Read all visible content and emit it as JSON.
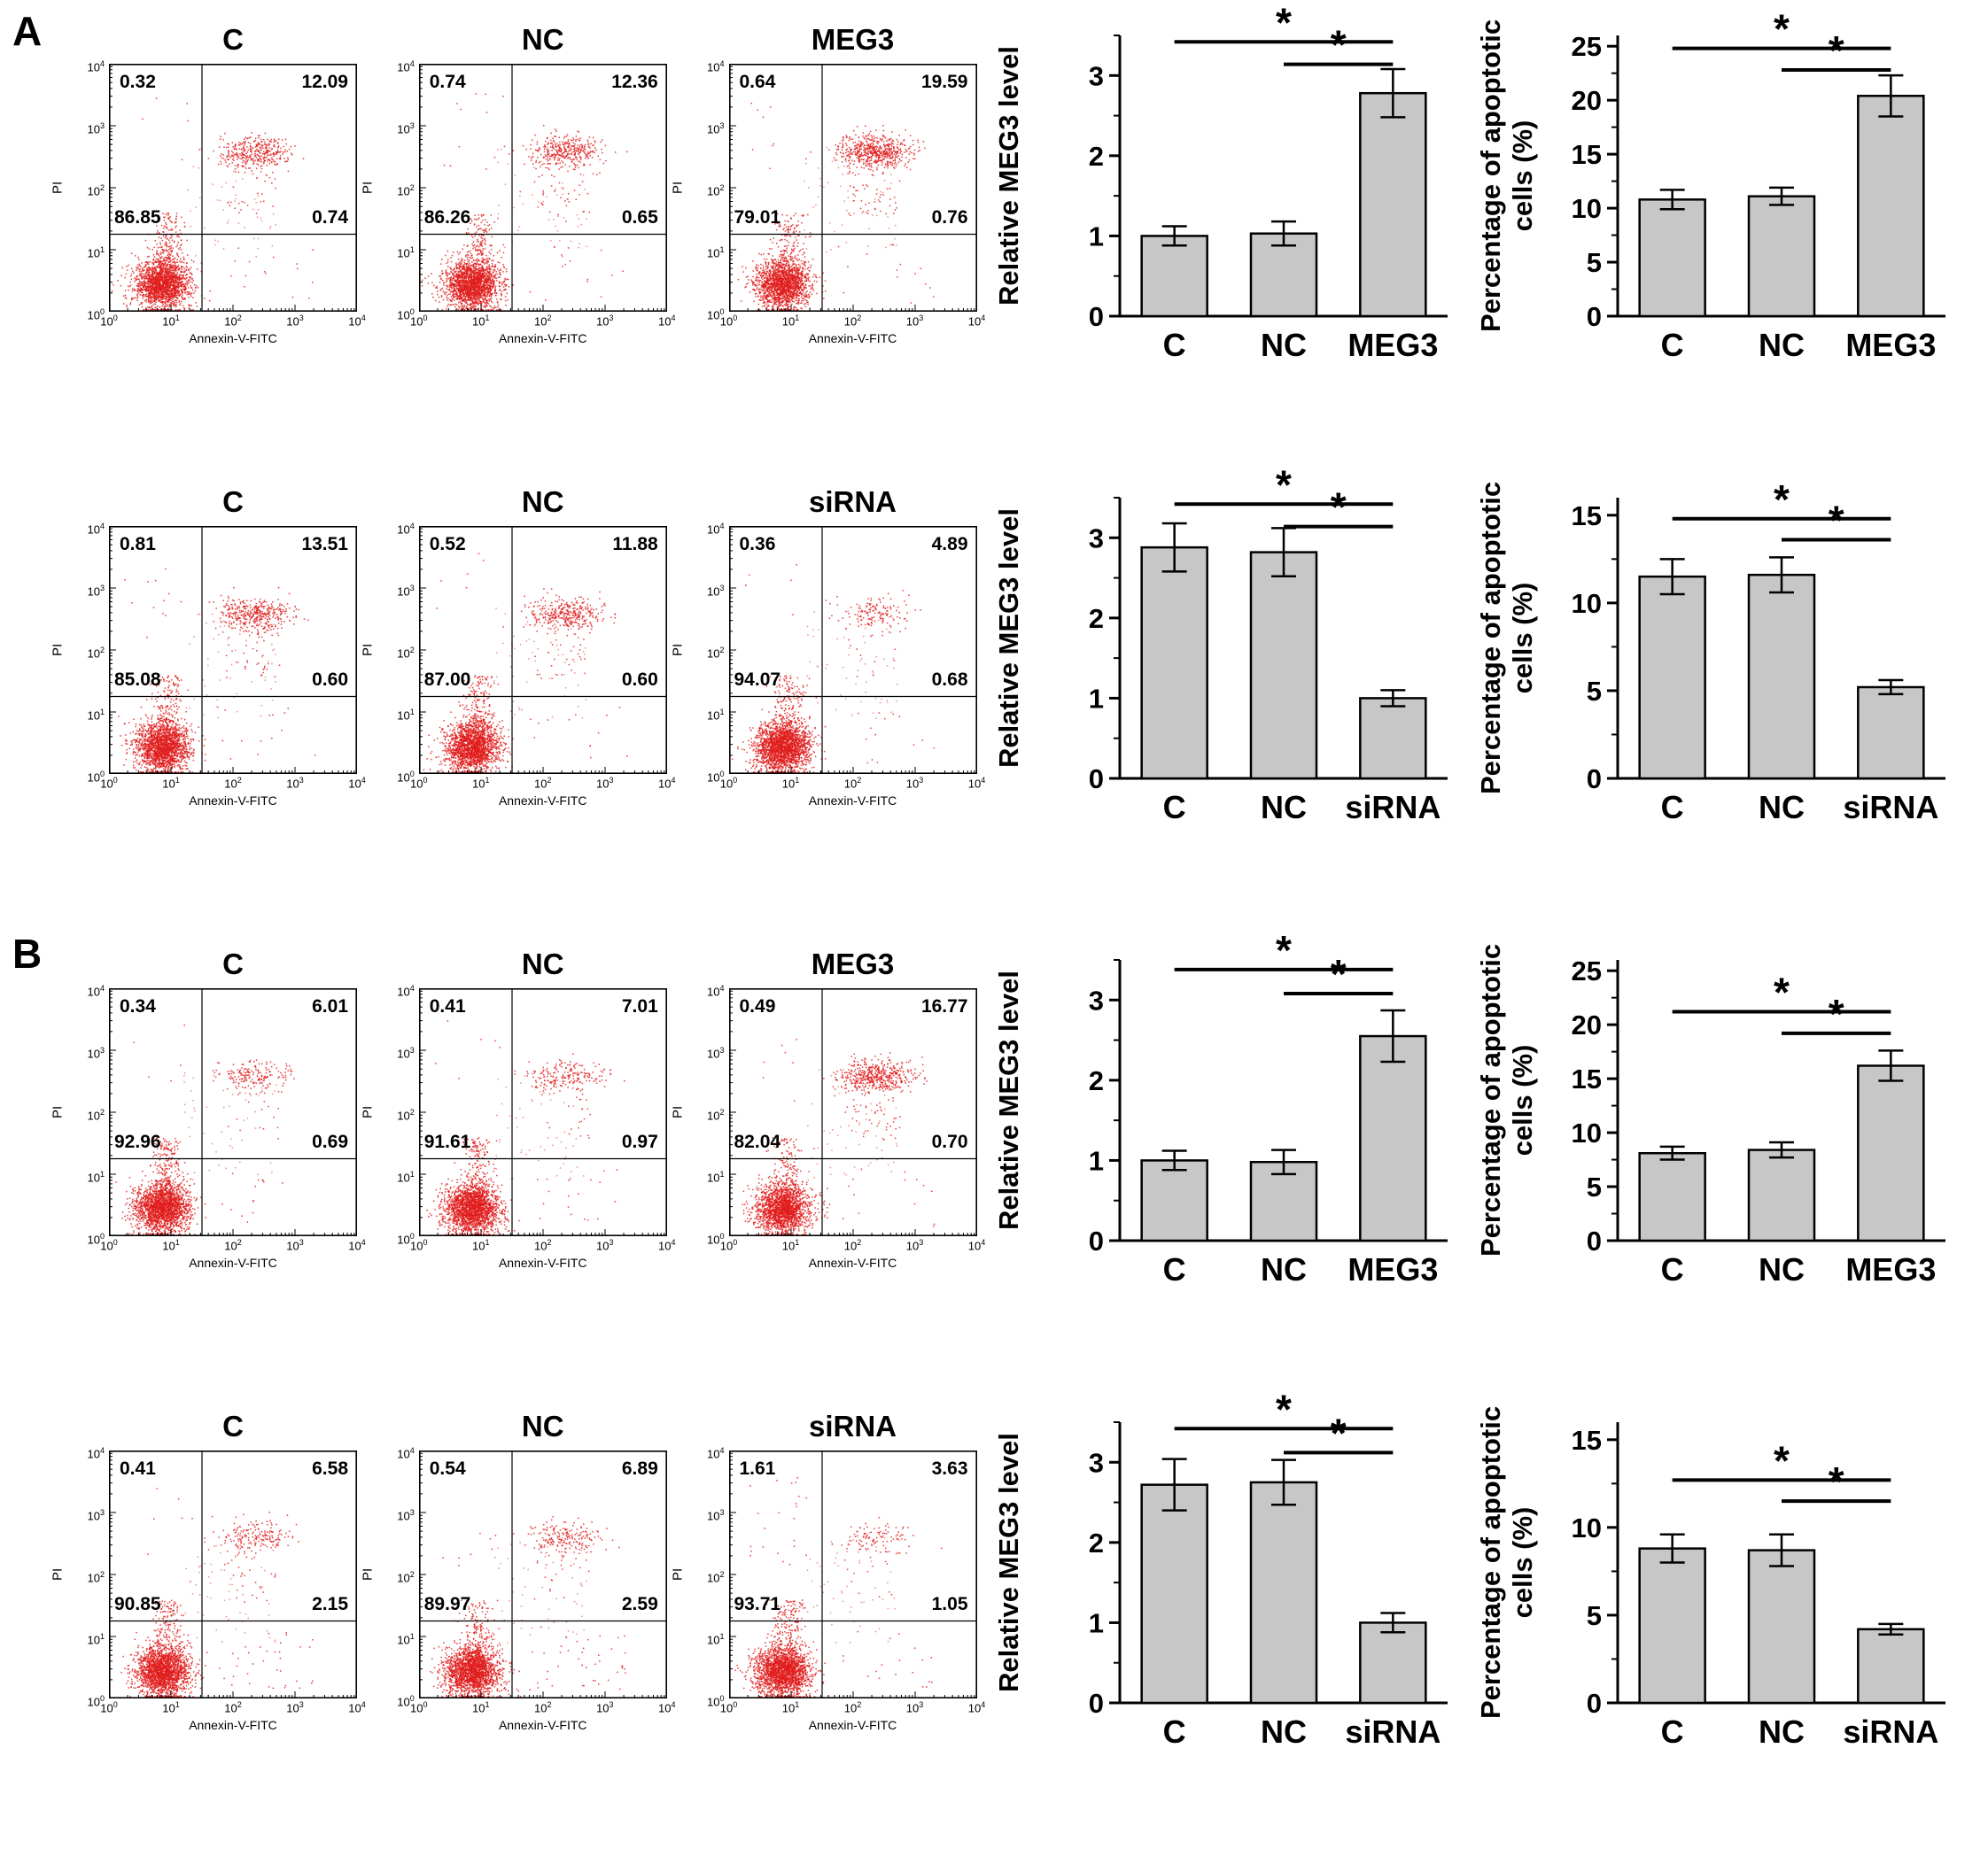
{
  "panels": {
    "a_label": "A",
    "b_label": "B"
  },
  "flow_axis": {
    "xlabel": "Annexin-V-FITC",
    "ylabel": "PI",
    "tick_exponents": [
      0,
      1,
      2,
      3,
      4
    ],
    "dot_color": "#e11d1d",
    "x_quadrant_divider_log": 1.5,
    "y_quadrant_divider_log": 1.25
  },
  "rows": [
    {
      "panel": "A",
      "flow_plots": [
        {
          "title": "C",
          "ul": "0.32",
          "ur": "12.09",
          "ll": "86.85",
          "lr": "0.74"
        },
        {
          "title": "NC",
          "ul": "0.74",
          "ur": "12.36",
          "ll": "86.26",
          "lr": "0.65"
        },
        {
          "title": "MEG3",
          "ul": "0.64",
          "ur": "19.59",
          "ll": "79.01",
          "lr": "0.76"
        }
      ],
      "chart_indices": [
        0,
        1
      ]
    },
    {
      "panel": "A",
      "flow_plots": [
        {
          "title": "C",
          "ul": "0.81",
          "ur": "13.51",
          "ll": "85.08",
          "lr": "0.60"
        },
        {
          "title": "NC",
          "ul": "0.52",
          "ur": "11.88",
          "ll": "87.00",
          "lr": "0.60"
        },
        {
          "title": "siRNA",
          "ul": "0.36",
          "ur": "4.89",
          "ll": "94.07",
          "lr": "0.68"
        }
      ],
      "chart_indices": [
        2,
        3
      ]
    },
    {
      "panel": "B",
      "flow_plots": [
        {
          "title": "C",
          "ul": "0.34",
          "ur": "6.01",
          "ll": "92.96",
          "lr": "0.69"
        },
        {
          "title": "NC",
          "ul": "0.41",
          "ur": "7.01",
          "ll": "91.61",
          "lr": "0.97"
        },
        {
          "title": "MEG3",
          "ul": "0.49",
          "ur": "16.77",
          "ll": "82.04",
          "lr": "0.70"
        }
      ],
      "chart_indices": [
        4,
        5
      ]
    },
    {
      "panel": "B",
      "flow_plots": [
        {
          "title": "C",
          "ul": "0.41",
          "ur": "6.58",
          "ll": "90.85",
          "lr": "2.15"
        },
        {
          "title": "NC",
          "ul": "0.54",
          "ur": "6.89",
          "ll": "89.97",
          "lr": "2.59"
        },
        {
          "title": "siRNA",
          "ul": "1.61",
          "ur": "3.63",
          "ll": "93.71",
          "lr": "1.05"
        }
      ],
      "chart_indices": [
        6,
        7
      ]
    }
  ],
  "chart_data": [
    {
      "id": "A-row1-meg3-level",
      "type": "bar",
      "categories": [
        "C",
        "NC",
        "MEG3"
      ],
      "values": [
        1.0,
        1.03,
        2.78
      ],
      "errors": [
        0.12,
        0.15,
        0.3
      ],
      "ylabel": "Relative MEG3 level",
      "ylabel_lines": [
        "Relative MEG3 level"
      ],
      "yticks": [
        0,
        1,
        2,
        3
      ],
      "ylim": [
        0,
        3.5
      ],
      "bar_color": "#c7c7c7",
      "significance": [
        {
          "from": 0,
          "to": 2,
          "y": 3.42,
          "label": "*"
        },
        {
          "from": 1,
          "to": 2,
          "y": 3.14,
          "label": "*"
        }
      ]
    },
    {
      "id": "A-row1-apoptotic",
      "type": "bar",
      "categories": [
        "C",
        "NC",
        "MEG3"
      ],
      "values": [
        10.8,
        11.1,
        20.4
      ],
      "errors": [
        0.9,
        0.8,
        1.9
      ],
      "ylabel": "Percentage of apoptotic cells (%)",
      "ylabel_lines": [
        "Percentage of apoptotic",
        "cells (%)"
      ],
      "yticks": [
        0,
        5,
        10,
        15,
        20,
        25
      ],
      "ylim": [
        0,
        26
      ],
      "bar_color": "#c7c7c7",
      "significance": [
        {
          "from": 0,
          "to": 2,
          "y": 24.8,
          "label": "*"
        },
        {
          "from": 1,
          "to": 2,
          "y": 22.8,
          "label": "*"
        }
      ]
    },
    {
      "id": "A-row2-meg3-level",
      "type": "bar",
      "categories": [
        "C",
        "NC",
        "siRNA"
      ],
      "values": [
        2.88,
        2.82,
        1.0
      ],
      "errors": [
        0.3,
        0.3,
        0.1
      ],
      "ylabel": "Relative MEG3 level",
      "ylabel_lines": [
        "Relative MEG3 level"
      ],
      "yticks": [
        0,
        1,
        2,
        3
      ],
      "ylim": [
        0,
        3.5
      ],
      "bar_color": "#c7c7c7",
      "significance": [
        {
          "from": 0,
          "to": 2,
          "y": 3.42,
          "label": "*"
        },
        {
          "from": 1,
          "to": 2,
          "y": 3.14,
          "label": "*"
        }
      ]
    },
    {
      "id": "A-row2-apoptotic",
      "type": "bar",
      "categories": [
        "C",
        "NC",
        "siRNA"
      ],
      "values": [
        11.5,
        11.6,
        5.2
      ],
      "errors": [
        1.0,
        1.0,
        0.4
      ],
      "ylabel": "Percentage of apoptotic cells (%)",
      "ylabel_lines": [
        "Percentage of apoptotic",
        "cells (%)"
      ],
      "yticks": [
        0,
        5,
        10,
        15
      ],
      "ylim": [
        0,
        16
      ],
      "bar_color": "#c7c7c7",
      "significance": [
        {
          "from": 0,
          "to": 2,
          "y": 14.8,
          "label": "*"
        },
        {
          "from": 1,
          "to": 2,
          "y": 13.6,
          "label": "*"
        }
      ]
    },
    {
      "id": "B-row1-meg3-level",
      "type": "bar",
      "categories": [
        "C",
        "NC",
        "MEG3"
      ],
      "values": [
        1.0,
        0.98,
        2.55
      ],
      "errors": [
        0.12,
        0.15,
        0.32
      ],
      "ylabel": "Relative MEG3 level",
      "ylabel_lines": [
        "Relative MEG3 level"
      ],
      "yticks": [
        0,
        1,
        2,
        3
      ],
      "ylim": [
        0,
        3.5
      ],
      "bar_color": "#c7c7c7",
      "significance": [
        {
          "from": 0,
          "to": 2,
          "y": 3.38,
          "label": "*"
        },
        {
          "from": 1,
          "to": 2,
          "y": 3.08,
          "label": "*"
        }
      ]
    },
    {
      "id": "B-row1-apoptotic",
      "type": "bar",
      "categories": [
        "C",
        "NC",
        "MEG3"
      ],
      "values": [
        8.1,
        8.4,
        16.2
      ],
      "errors": [
        0.6,
        0.7,
        1.4
      ],
      "ylabel": "Percentage of apoptotic cells (%)",
      "ylabel_lines": [
        "Percentage of apoptotic",
        "cells (%)"
      ],
      "yticks": [
        0,
        5,
        10,
        15,
        20,
        25
      ],
      "ylim": [
        0,
        26
      ],
      "bar_color": "#c7c7c7",
      "significance": [
        {
          "from": 0,
          "to": 2,
          "y": 21.2,
          "label": "*"
        },
        {
          "from": 1,
          "to": 2,
          "y": 19.2,
          "label": "*"
        }
      ]
    },
    {
      "id": "B-row2-meg3-level",
      "type": "bar",
      "categories": [
        "C",
        "NC",
        "siRNA"
      ],
      "values": [
        2.72,
        2.75,
        1.0
      ],
      "errors": [
        0.32,
        0.28,
        0.12
      ],
      "ylabel": "Relative MEG3 level",
      "ylabel_lines": [
        "Relative MEG3 level"
      ],
      "yticks": [
        0,
        1,
        2,
        3
      ],
      "ylim": [
        0,
        3.5
      ],
      "bar_color": "#c7c7c7",
      "significance": [
        {
          "from": 0,
          "to": 2,
          "y": 3.42,
          "label": "*"
        },
        {
          "from": 1,
          "to": 2,
          "y": 3.12,
          "label": "*"
        }
      ]
    },
    {
      "id": "B-row2-apoptotic",
      "type": "bar",
      "categories": [
        "C",
        "NC",
        "siRNA"
      ],
      "values": [
        8.8,
        8.7,
        4.2
      ],
      "errors": [
        0.8,
        0.9,
        0.3
      ],
      "ylabel": "Percentage of apoptotic cells (%)",
      "ylabel_lines": [
        "Percentage of apoptotic",
        "cells (%)"
      ],
      "yticks": [
        0,
        5,
        10,
        15
      ],
      "ylim": [
        0,
        16
      ],
      "bar_color": "#c7c7c7",
      "significance": [
        {
          "from": 0,
          "to": 2,
          "y": 12.7,
          "label": "*"
        },
        {
          "from": 1,
          "to": 2,
          "y": 11.5,
          "label": "*"
        }
      ]
    }
  ]
}
